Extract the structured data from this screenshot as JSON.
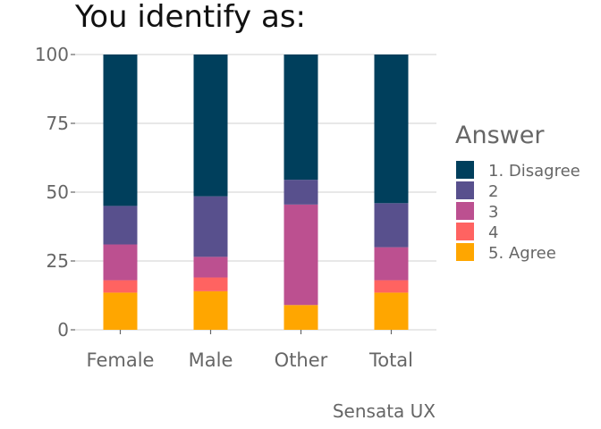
{
  "chart_data": {
    "type": "bar",
    "stacked": true,
    "title": "You identify as:",
    "caption": "Sensata UX",
    "xlabel": "",
    "ylabel": "",
    "ylim": [
      0,
      100
    ],
    "yticks": [
      0,
      25,
      50,
      75,
      100
    ],
    "grid": true,
    "legend": {
      "title": "Answer",
      "position": "right"
    },
    "categories": [
      "Female",
      "Male",
      "Other",
      "Total"
    ],
    "series": [
      {
        "name": "5. Agree",
        "color": "#ffa600",
        "values": [
          13.5,
          14,
          9,
          13.5
        ]
      },
      {
        "name": "4",
        "color": "#ff6361",
        "values": [
          4.5,
          5,
          0,
          4.5
        ]
      },
      {
        "name": "3",
        "color": "#bc5090",
        "values": [
          13,
          7.5,
          36.5,
          12
        ]
      },
      {
        "name": "2",
        "color": "#58508d",
        "values": [
          14,
          22,
          9,
          16
        ]
      },
      {
        "name": "1. Disagree",
        "color": "#003f5c",
        "values": [
          55,
          51.5,
          45.5,
          54
        ]
      }
    ]
  }
}
